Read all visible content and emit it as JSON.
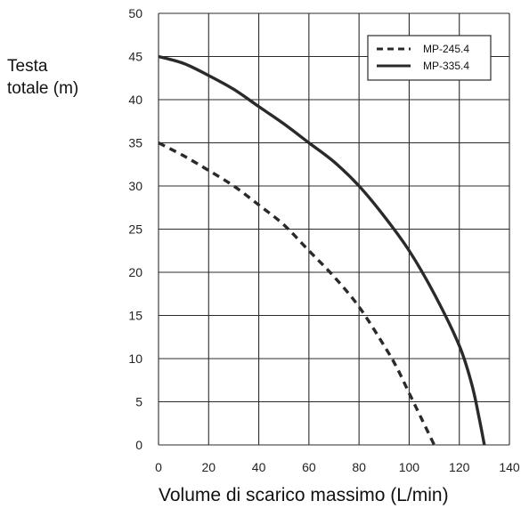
{
  "chart_data": {
    "type": "line",
    "title": "",
    "ylabel_lines": [
      "Testa",
      "totale (m)"
    ],
    "xlabel": "Volume di scarico massimo (L/min)",
    "xlim": [
      0,
      140
    ],
    "ylim": [
      0,
      50
    ],
    "xticks": [
      0,
      20,
      40,
      60,
      80,
      100,
      120,
      140
    ],
    "yticks": [
      0,
      5,
      10,
      15,
      20,
      25,
      30,
      35,
      40,
      45,
      50
    ],
    "grid": true,
    "legend_position": "top-right",
    "series": [
      {
        "name": "MP-245.4",
        "style": "dashed",
        "color": "#2a2a2a",
        "x": [
          0,
          10,
          20,
          30,
          40,
          50,
          60,
          70,
          80,
          90,
          95,
          100,
          105,
          110
        ],
        "y": [
          35,
          33.5,
          31.8,
          30.0,
          27.8,
          25.5,
          22.5,
          19.5,
          16.0,
          11.5,
          9.0,
          6.0,
          3.0,
          0
        ]
      },
      {
        "name": "MP-335.4",
        "style": "solid",
        "color": "#2a2a2a",
        "x": [
          0,
          10,
          20,
          30,
          40,
          50,
          60,
          70,
          80,
          90,
          100,
          110,
          120,
          125,
          128,
          130
        ],
        "y": [
          45,
          44.2,
          42.8,
          41.2,
          39.2,
          37.2,
          35.0,
          32.8,
          30.0,
          26.5,
          22.5,
          17.5,
          11.5,
          7.0,
          3.0,
          0
        ]
      }
    ]
  }
}
